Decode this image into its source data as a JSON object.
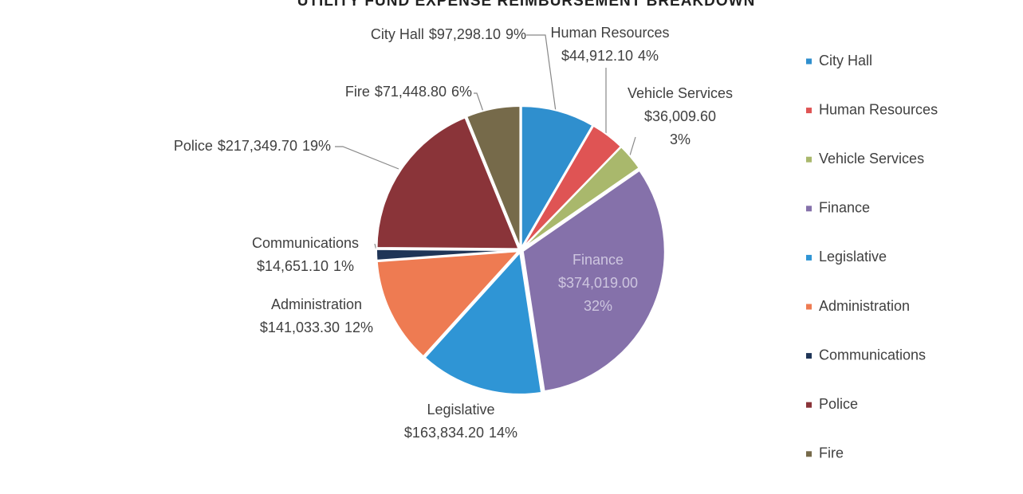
{
  "chart_data": {
    "type": "pie",
    "title": "UTILITY FUND EXPENSE REIMBURSEMENT BREAKDOWN",
    "categories": [
      "City Hall",
      "Human Resources",
      "Vehicle Services",
      "Finance",
      "Legislative",
      "Administration",
      "Communications",
      "Police",
      "Fire"
    ],
    "values": [
      97298.1,
      44912.1,
      36009.6,
      374019.0,
      163834.2,
      141033.3,
      14651.1,
      217349.7,
      71448.8
    ],
    "value_labels": [
      "$97,298.10",
      "$44,912.10",
      "$36,009.60",
      "$374,019.00",
      "$163,834.20",
      "$141,033.30",
      "$14,651.10",
      "$217,349.70",
      "$71,448.80"
    ],
    "percentages": [
      9,
      4,
      3,
      32,
      14,
      12,
      1,
      19,
      6
    ],
    "percent_labels": [
      "9%",
      "4%",
      "3%",
      "32%",
      "14%",
      "12%",
      "1%",
      "19%",
      "6%"
    ],
    "colors": [
      "#2f8fce",
      "#df5454",
      "#a9b86c",
      "#8571aa",
      "#2f95d5",
      "#ee7b52",
      "#1f3557",
      "#8a3439",
      "#766a4a"
    ],
    "legend": "right"
  }
}
